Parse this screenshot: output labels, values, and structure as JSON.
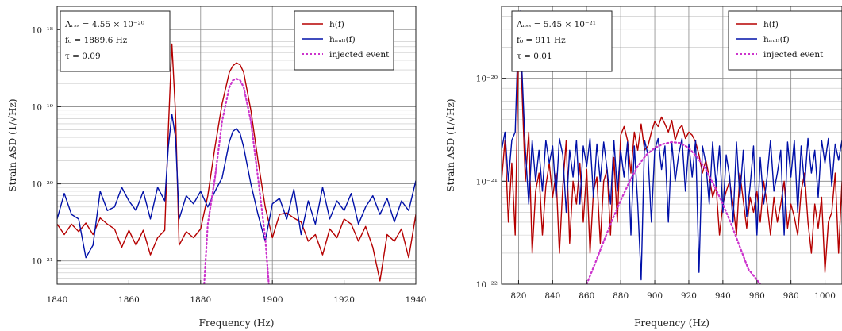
{
  "chart_data": [
    {
      "type": "line",
      "xlabel": "Frequency (Hz)",
      "ylabel": "Strain ASD (1/√Hz)",
      "xlim": [
        1840,
        1940
      ],
      "ylim": [
        5e-22,
        2e-18
      ],
      "yscale": "log",
      "xticks": [
        1840,
        1860,
        1880,
        1900,
        1920,
        1940
      ],
      "yticks": [
        {
          "value": 1e-18,
          "label": "10⁻¹⁸"
        },
        {
          "value": 1e-19,
          "label": "10⁻¹⁹"
        },
        {
          "value": 1e-20,
          "label": "10⁻²⁰"
        },
        {
          "value": 1e-21,
          "label": "10⁻²¹"
        }
      ],
      "grid": true,
      "legend_position": "top-right",
      "annotation": [
        "Aᵣₛₛ = 4.55 × 10⁻²⁰",
        "f₀ = 1889.6 Hz",
        "τ = 0.09"
      ],
      "series": [
        {
          "name": "h(f)",
          "color": "#b50000",
          "style": "solid",
          "x": [
            1840,
            1842,
            1844,
            1846,
            1848,
            1850,
            1852,
            1854,
            1856,
            1858,
            1860,
            1862,
            1864,
            1866,
            1868,
            1870,
            1871,
            1872,
            1873,
            1874,
            1876,
            1878,
            1880,
            1882,
            1884,
            1886,
            1888,
            1889,
            1890,
            1891,
            1892,
            1894,
            1896,
            1898,
            1900,
            1902,
            1904,
            1906,
            1908,
            1910,
            1912,
            1914,
            1916,
            1918,
            1920,
            1922,
            1924,
            1926,
            1928,
            1930,
            1932,
            1934,
            1936,
            1938,
            1940
          ],
          "y": [
            3e-21,
            2.2e-21,
            3e-21,
            2.4e-21,
            3.1e-21,
            2.2e-21,
            3.6e-21,
            3e-21,
            2.6e-21,
            1.5e-21,
            2.5e-21,
            1.6e-21,
            2.5e-21,
            1.2e-21,
            2e-21,
            2.5e-21,
            5e-20,
            6.5e-19,
            8e-20,
            1.6e-21,
            2.4e-21,
            2e-21,
            2.6e-21,
            7e-21,
            3e-20,
            1.1e-19,
            2.8e-19,
            3.4e-19,
            3.7e-19,
            3.5e-19,
            2.8e-19,
            9e-20,
            2e-20,
            5e-21,
            2e-21,
            4e-21,
            4.2e-21,
            3.6e-21,
            3.2e-21,
            1.8e-21,
            2.2e-21,
            1.2e-21,
            2.6e-21,
            2e-21,
            3.5e-21,
            3e-21,
            1.8e-21,
            2.8e-21,
            1.5e-21,
            5.5e-22,
            2.2e-21,
            1.8e-21,
            2.6e-21,
            1.1e-21,
            4e-21
          ]
        },
        {
          "name": "hₙᵤₗₗ(f)",
          "color": "#0010a8",
          "style": "solid",
          "x": [
            1840,
            1842,
            1844,
            1846,
            1848,
            1850,
            1852,
            1854,
            1856,
            1858,
            1860,
            1862,
            1864,
            1866,
            1868,
            1870,
            1871,
            1872,
            1873,
            1874,
            1876,
            1878,
            1880,
            1882,
            1884,
            1886,
            1888,
            1889,
            1890,
            1891,
            1892,
            1894,
            1896,
            1898,
            1900,
            1902,
            1904,
            1906,
            1908,
            1910,
            1912,
            1914,
            1916,
            1918,
            1920,
            1922,
            1924,
            1926,
            1928,
            1930,
            1932,
            1934,
            1936,
            1938,
            1940
          ],
          "y": [
            3.5e-21,
            7.5e-21,
            4e-21,
            3.5e-21,
            1.1e-21,
            1.6e-21,
            8e-21,
            4.5e-21,
            5e-21,
            9e-21,
            6e-21,
            4.5e-21,
            8e-21,
            3.5e-21,
            9e-21,
            6e-21,
            3e-20,
            8e-20,
            4e-20,
            3.5e-21,
            7e-21,
            5.5e-21,
            8e-21,
            5e-21,
            8e-21,
            1.2e-20,
            3.5e-20,
            4.8e-20,
            5.2e-20,
            4.5e-20,
            3e-20,
            1e-20,
            4e-21,
            1.8e-21,
            5.5e-21,
            6.5e-21,
            3.5e-21,
            8.5e-21,
            2.2e-21,
            6e-21,
            3e-21,
            9e-21,
            3.5e-21,
            6e-21,
            4.5e-21,
            7.5e-21,
            3e-21,
            5e-21,
            7e-21,
            4e-21,
            6.5e-21,
            3.2e-21,
            6e-21,
            4.5e-21,
            1.1e-20
          ]
        },
        {
          "name": "injected event",
          "color": "#cc33cc",
          "style": "dotted",
          "x": [
            1881,
            1882,
            1884,
            1886,
            1888,
            1889,
            1890,
            1891,
            1892,
            1894,
            1896,
            1898,
            1899
          ],
          "y": [
            5e-22,
            3e-21,
            1.2e-20,
            6.5e-20,
            1.8e-19,
            2.2e-19,
            2.3e-19,
            2.2e-19,
            1.8e-19,
            6.5e-20,
            1.2e-20,
            2e-21,
            5e-22
          ]
        }
      ]
    },
    {
      "type": "line",
      "xlabel": "Frequency (Hz)",
      "ylabel": "Strain ASD (1/√Hz)",
      "xlim": [
        810,
        1010
      ],
      "ylim": [
        1e-22,
        5e-20
      ],
      "yscale": "log",
      "xticks": [
        820,
        840,
        860,
        880,
        900,
        920,
        940,
        960,
        980,
        1000
      ],
      "yticks": [
        {
          "value": 1e-20,
          "label": "10⁻²⁰"
        },
        {
          "value": 1e-21,
          "label": "10⁻²¹"
        },
        {
          "value": 1e-22,
          "label": "10⁻²²"
        }
      ],
      "grid": true,
      "legend_position": "top-right",
      "annotation": [
        "Aᵣₛₛ = 5.45 × 10⁻²¹",
        "f₀ = 911 Hz",
        "τ = 0.01"
      ],
      "series": [
        {
          "name": "h(f)",
          "color": "#b50000",
          "style": "solid",
          "x": [
            810,
            812,
            814,
            816,
            818,
            820,
            821,
            822,
            824,
            826,
            828,
            830,
            832,
            834,
            836,
            838,
            840,
            842,
            844,
            846,
            848,
            850,
            852,
            854,
            856,
            858,
            860,
            862,
            864,
            866,
            868,
            870,
            872,
            874,
            876,
            878,
            880,
            882,
            884,
            886,
            888,
            890,
            892,
            894,
            896,
            898,
            900,
            902,
            904,
            906,
            908,
            910,
            912,
            914,
            916,
            918,
            920,
            922,
            924,
            926,
            928,
            930,
            932,
            934,
            936,
            938,
            940,
            942,
            944,
            946,
            948,
            950,
            952,
            954,
            956,
            958,
            960,
            962,
            964,
            966,
            968,
            970,
            972,
            974,
            976,
            978,
            980,
            982,
            984,
            986,
            988,
            990,
            992,
            994,
            996,
            998,
            1000,
            1002,
            1004,
            1006,
            1008,
            1010
          ],
          "y": [
            1e-21,
            2.5e-21,
            4e-22,
            1.5e-21,
            3e-22,
            2.2e-20,
            3.5e-20,
            8e-21,
            1e-21,
            3e-21,
            2e-22,
            8e-22,
            1.2e-21,
            3e-22,
            9e-22,
            1.5e-21,
            7e-22,
            1.2e-21,
            2e-22,
            9e-22,
            2.5e-21,
            2.5e-22,
            1e-21,
            6e-22,
            1.5e-21,
            4e-22,
            1.3e-21,
            2e-22,
            8e-22,
            1.1e-21,
            2.5e-22,
            1e-21,
            1.3e-21,
            3e-22,
            1.7e-21,
            4e-22,
            2.8e-21,
            3.4e-21,
            2.5e-21,
            1.2e-21,
            3e-21,
            2e-21,
            3.6e-21,
            2e-21,
            2.2e-21,
            3e-21,
            3.8e-21,
            3.4e-21,
            4.2e-21,
            3.6e-21,
            3e-21,
            3.9e-21,
            2.5e-21,
            3.2e-21,
            3.5e-21,
            2.6e-21,
            3e-21,
            2.8e-21,
            2.4e-21,
            1.8e-21,
            1.2e-21,
            1.6e-21,
            1.1e-21,
            7e-22,
            9e-22,
            3e-22,
            6e-22,
            8e-22,
            1e-21,
            6e-22,
            3e-22,
            1.2e-21,
            6.5e-22,
            3.5e-22,
            7e-22,
            5e-22,
            8e-22,
            4e-22,
            1e-21,
            6e-22,
            3e-22,
            7e-22,
            4e-22,
            6e-22,
            1e-21,
            3.5e-22,
            6e-22,
            4.5e-22,
            3e-22,
            8e-22,
            1.2e-21,
            4e-22,
            2e-22,
            6e-22,
            3.5e-22,
            7e-22,
            1.3e-22,
            4e-22,
            5e-22,
            1.2e-21,
            2e-22,
            1e-21
          ]
        },
        {
          "name": "hₙᵤₗₗ(f)",
          "color": "#0010a8",
          "style": "solid",
          "x": [
            810,
            812,
            814,
            816,
            818,
            820,
            821,
            822,
            824,
            826,
            828,
            830,
            832,
            834,
            836,
            838,
            840,
            842,
            844,
            846,
            848,
            850,
            852,
            854,
            856,
            858,
            860,
            862,
            864,
            866,
            868,
            870,
            872,
            874,
            876,
            878,
            880,
            882,
            884,
            886,
            888,
            890,
            892,
            894,
            896,
            898,
            900,
            902,
            904,
            906,
            908,
            910,
            912,
            914,
            916,
            918,
            920,
            922,
            924,
            926,
            928,
            930,
            932,
            934,
            936,
            938,
            940,
            942,
            944,
            946,
            948,
            950,
            952,
            954,
            956,
            958,
            960,
            962,
            964,
            966,
            968,
            970,
            972,
            974,
            976,
            978,
            980,
            982,
            984,
            986,
            988,
            990,
            992,
            994,
            996,
            998,
            1000,
            1002,
            1004,
            1006,
            1008,
            1010
          ],
          "y": [
            2e-21,
            3e-21,
            1e-21,
            2.5e-21,
            3e-21,
            3.5e-20,
            4.5e-20,
            1.2e-20,
            2e-21,
            6e-22,
            2.5e-21,
            1e-21,
            2e-21,
            8e-22,
            2.5e-21,
            1.5e-21,
            2.2e-21,
            7e-22,
            2.6e-21,
            1.8e-21,
            5e-22,
            2e-21,
            1.1e-21,
            2.5e-21,
            6e-22,
            2.2e-21,
            1.4e-21,
            2.6e-21,
            7e-22,
            2.3e-21,
            1e-21,
            2.4e-21,
            1.3e-21,
            6e-22,
            2.5e-21,
            8e-22,
            2e-21,
            1.1e-21,
            2.4e-21,
            3e-22,
            2.2e-21,
            6e-22,
            1.1e-22,
            2.5e-21,
            1.8e-21,
            4e-22,
            2e-21,
            2.6e-21,
            1.3e-21,
            2.2e-21,
            4e-22,
            2.4e-21,
            1e-21,
            1.8e-21,
            2.6e-21,
            8e-22,
            2.3e-21,
            1.1e-21,
            2.5e-21,
            1.3e-22,
            2.2e-21,
            1.5e-21,
            6e-22,
            2.4e-21,
            9e-22,
            2.2e-21,
            5e-22,
            1.8e-21,
            1.1e-21,
            4e-22,
            2.4e-21,
            7e-22,
            2e-21,
            4.5e-22,
            9e-22,
            2.2e-21,
            3e-22,
            1.7e-21,
            6e-22,
            1.1e-21,
            2.5e-21,
            8e-22,
            1.2e-21,
            2e-21,
            3e-22,
            2.4e-21,
            1.1e-21,
            2.5e-21,
            5e-22,
            2.2e-21,
            9e-22,
            2.6e-21,
            1.2e-21,
            2e-21,
            7e-22,
            2.5e-21,
            1.5e-21,
            2.6e-21,
            9e-22,
            2.3e-21,
            1.6e-21,
            2.5e-21
          ]
        },
        {
          "name": "injected event",
          "color": "#cc33cc",
          "style": "dotted",
          "x": [
            860,
            865,
            870,
            875,
            880,
            885,
            890,
            895,
            900,
            905,
            910,
            915,
            920,
            925,
            930,
            935,
            940,
            945,
            950,
            955,
            960,
            962
          ],
          "y": [
            1e-22,
            1.6e-22,
            2.6e-22,
            4.2e-22,
            6.5e-22,
            9.8e-22,
            1.4e-21,
            1.8e-21,
            2.1e-21,
            2.3e-21,
            2.4e-21,
            2.35e-21,
            2.1e-21,
            1.7e-21,
            1.3e-21,
            9e-22,
            6e-22,
            3.8e-22,
            2.3e-22,
            1.4e-22,
            1.1e-22,
            1e-22
          ]
        }
      ]
    }
  ]
}
